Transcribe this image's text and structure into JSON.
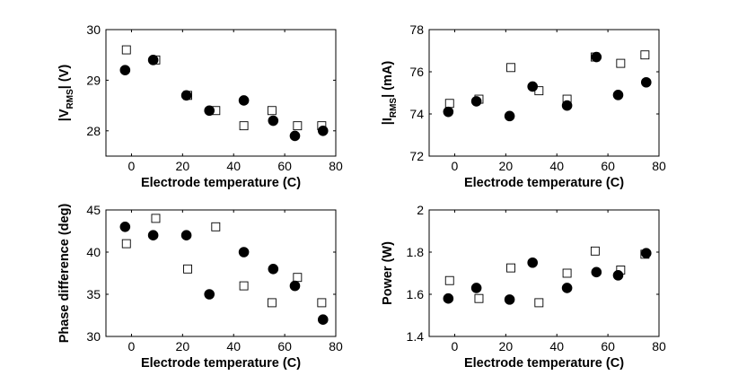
{
  "chart_data": [
    {
      "type": "scatter",
      "id": "vrms",
      "xlabel": "Electrode temperature (C)",
      "ylabel": "|V",
      "ylabel_sub": "RMS",
      "ylabel_suffix": "| (V)",
      "xlim": [
        -10,
        80
      ],
      "ylim": [
        27.5,
        30
      ],
      "xticks": [
        0,
        20,
        40,
        60,
        80
      ],
      "xtick_labels": [
        "0",
        "20",
        "40",
        "60",
        "80"
      ],
      "yticks": [
        28,
        29,
        30
      ],
      "ytick_labels": [
        "28",
        "29",
        "30"
      ],
      "series": [
        {
          "name": "open squares",
          "marker": "square-open",
          "x": [
            -2,
            9.5,
            22,
            33,
            44,
            55,
            65,
            74.5
          ],
          "y": [
            29.6,
            29.4,
            28.7,
            28.4,
            28.1,
            28.4,
            28.1,
            28.1
          ]
        },
        {
          "name": "filled circles",
          "marker": "circle-filled",
          "x": [
            -2.5,
            8.5,
            21.5,
            30.5,
            44,
            55.5,
            64,
            75
          ],
          "y": [
            29.2,
            29.4,
            28.7,
            28.4,
            28.6,
            28.2,
            27.9,
            28.0
          ]
        }
      ]
    },
    {
      "type": "scatter",
      "id": "irms",
      "xlabel": "Electrode temperature (C)",
      "ylabel": "|I",
      "ylabel_sub": "RMS",
      "ylabel_suffix": "| (mA)",
      "xlim": [
        -10,
        80
      ],
      "ylim": [
        72,
        78
      ],
      "xticks": [
        0,
        20,
        40,
        60,
        80
      ],
      "xtick_labels": [
        "0",
        "20",
        "40",
        "60",
        "80"
      ],
      "yticks": [
        72,
        74,
        76,
        78
      ],
      "ytick_labels": [
        "72",
        "74",
        "76",
        "78"
      ],
      "series": [
        {
          "name": "open squares",
          "marker": "square-open",
          "x": [
            -2,
            9.5,
            22,
            33,
            44,
            55,
            65,
            74.5
          ],
          "y": [
            74.5,
            74.7,
            76.2,
            75.1,
            74.7,
            76.7,
            76.4,
            76.8
          ]
        },
        {
          "name": "filled circles",
          "marker": "circle-filled",
          "x": [
            -2.5,
            8.5,
            21.5,
            30.5,
            44,
            55.5,
            64,
            75
          ],
          "y": [
            74.1,
            74.6,
            73.9,
            75.3,
            74.4,
            76.7,
            74.9,
            75.5
          ]
        }
      ]
    },
    {
      "type": "scatter",
      "id": "phase",
      "xlabel": "Electrode temperature (C)",
      "ylabel": "Phase difference (deg)",
      "ylabel_sub": "",
      "ylabel_suffix": "",
      "xlim": [
        -10,
        80
      ],
      "ylim": [
        30,
        45
      ],
      "xticks": [
        0,
        20,
        40,
        60,
        80
      ],
      "xtick_labels": [
        "0",
        "20",
        "40",
        "60",
        "80"
      ],
      "yticks": [
        30,
        35,
        40,
        45
      ],
      "ytick_labels": [
        "30",
        "35",
        "40",
        "45"
      ],
      "series": [
        {
          "name": "open squares",
          "marker": "square-open",
          "x": [
            -2,
            9.5,
            22,
            33,
            44,
            55,
            65,
            74.5
          ],
          "y": [
            41,
            44,
            38,
            43,
            36,
            34,
            37,
            34
          ]
        },
        {
          "name": "filled circles",
          "marker": "circle-filled",
          "x": [
            -2.5,
            8.5,
            21.5,
            30.5,
            44,
            55.5,
            64,
            75
          ],
          "y": [
            43,
            42,
            42,
            35,
            40,
            38,
            36,
            32
          ]
        }
      ]
    },
    {
      "type": "scatter",
      "id": "power",
      "xlabel": "Electrode temperature (C)",
      "ylabel": "Power (W)",
      "ylabel_sub": "",
      "ylabel_suffix": "",
      "xlim": [
        -10,
        80
      ],
      "ylim": [
        1.4,
        2.0
      ],
      "xticks": [
        0,
        20,
        40,
        60,
        80
      ],
      "xtick_labels": [
        "0",
        "20",
        "40",
        "60",
        "80"
      ],
      "yticks": [
        1.4,
        1.6,
        1.8,
        2.0
      ],
      "ytick_labels": [
        "1.4",
        "1.6",
        "1.8",
        "2"
      ],
      "series": [
        {
          "name": "open squares",
          "marker": "square-open",
          "x": [
            -2,
            9.5,
            22,
            33,
            44,
            55,
            65,
            74.5
          ],
          "y": [
            1.665,
            1.58,
            1.725,
            1.56,
            1.7,
            1.805,
            1.715,
            1.79
          ]
        },
        {
          "name": "filled circles",
          "marker": "circle-filled",
          "x": [
            -2.5,
            8.5,
            21.5,
            30.5,
            44,
            55.5,
            64,
            75
          ],
          "y": [
            1.58,
            1.63,
            1.575,
            1.75,
            1.63,
            1.705,
            1.69,
            1.795
          ]
        }
      ]
    }
  ]
}
